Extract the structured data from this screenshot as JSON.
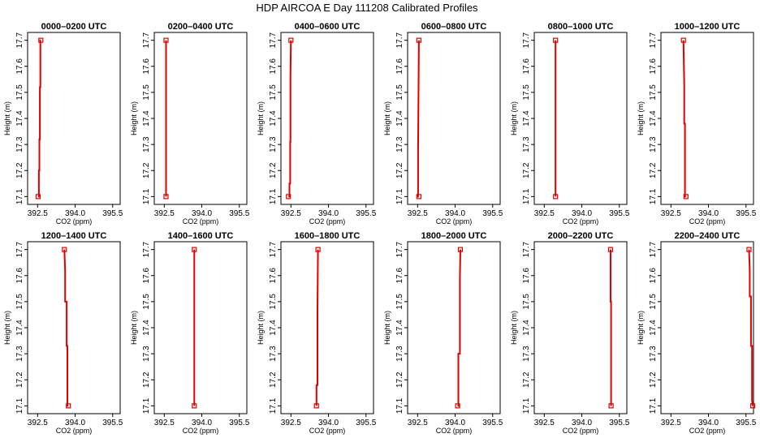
{
  "title": "HDP AIRCOA E  Day 111208  Calibrated Profiles",
  "chart_data": [
    {
      "type": "line",
      "title": "0000–0200 UTC",
      "xlabel": "CO2 (ppm)",
      "ylabel": "Height (m)",
      "xlim": [
        392.1,
        395.8
      ],
      "ylim": [
        17.07,
        17.73
      ],
      "xticks": [
        "392.5",
        "394.0",
        "395.5"
      ],
      "yticks": [
        "17.1",
        "17.2",
        "17.3",
        "17.4",
        "17.5",
        "17.6",
        "17.7"
      ],
      "color": "#e00000",
      "series": [
        {
          "x": [
            392.52,
            392.55,
            392.55,
            392.57,
            392.57,
            392.59,
            392.59,
            392.61,
            392.61,
            392.63
          ],
          "y": [
            17.1,
            17.1,
            17.2,
            17.2,
            17.32,
            17.32,
            17.52,
            17.52,
            17.7,
            17.7
          ]
        }
      ],
      "endpoints": [
        {
          "x": 392.52,
          "y": 17.1
        },
        {
          "x": 392.63,
          "y": 17.7
        }
      ]
    },
    {
      "type": "line",
      "title": "0200–0400 UTC",
      "xlabel": "CO2 (ppm)",
      "ylabel": "Height (m)",
      "xlim": [
        392.1,
        395.8
      ],
      "ylim": [
        17.07,
        17.73
      ],
      "xticks": [
        "392.5",
        "394.0",
        "395.5"
      ],
      "yticks": [
        "17.1",
        "17.2",
        "17.3",
        "17.4",
        "17.5",
        "17.6",
        "17.7"
      ],
      "color": "#e00000",
      "series": [
        {
          "x": [
            392.57,
            392.57
          ],
          "y": [
            17.1,
            17.7
          ]
        }
      ],
      "endpoints": [
        {
          "x": 392.57,
          "y": 17.1
        },
        {
          "x": 392.57,
          "y": 17.7
        }
      ]
    },
    {
      "type": "line",
      "title": "0400–0600 UTC",
      "xlabel": "CO2 (ppm)",
      "ylabel": "Height (m)",
      "xlim": [
        392.1,
        395.8
      ],
      "ylim": [
        17.07,
        17.73
      ],
      "xticks": [
        "392.5",
        "394.0",
        "395.5"
      ],
      "yticks": [
        "17.1",
        "17.2",
        "17.3",
        "17.4",
        "17.5",
        "17.6",
        "17.7"
      ],
      "color": "#e00000",
      "series": [
        {
          "x": [
            392.4,
            392.44,
            392.44,
            392.47,
            392.47,
            392.48,
            392.48,
            392.5
          ],
          "y": [
            17.1,
            17.1,
            17.15,
            17.15,
            17.31,
            17.31,
            17.56,
            17.7
          ]
        }
      ],
      "endpoints": [
        {
          "x": 392.4,
          "y": 17.1
        },
        {
          "x": 392.5,
          "y": 17.7
        }
      ]
    },
    {
      "type": "line",
      "title": "0600–0800 UTC",
      "xlabel": "CO2 (ppm)",
      "ylabel": "Height (m)",
      "xlim": [
        392.1,
        395.8
      ],
      "ylim": [
        17.07,
        17.73
      ],
      "xticks": [
        "392.5",
        "394.0",
        "395.5"
      ],
      "yticks": [
        "17.1",
        "17.2",
        "17.3",
        "17.4",
        "17.5",
        "17.6",
        "17.7"
      ],
      "color": "#e00000",
      "series": [
        {
          "x": [
            392.55,
            392.52,
            392.52,
            392.55
          ],
          "y": [
            17.1,
            17.1,
            17.27,
            17.7
          ]
        }
      ],
      "endpoints": [
        {
          "x": 392.55,
          "y": 17.1
        },
        {
          "x": 392.55,
          "y": 17.7
        }
      ]
    },
    {
      "type": "line",
      "title": "0800–1000 UTC",
      "xlabel": "CO2 (ppm)",
      "ylabel": "Height (m)",
      "xlim": [
        392.1,
        395.8
      ],
      "ylim": [
        17.07,
        17.73
      ],
      "xticks": [
        "392.5",
        "394.0",
        "395.5"
      ],
      "yticks": [
        "17.1",
        "17.2",
        "17.3",
        "17.4",
        "17.5",
        "17.6",
        "17.7"
      ],
      "color": "#e00000",
      "series": [
        {
          "x": [
            392.95,
            392.95
          ],
          "y": [
            17.1,
            17.7
          ]
        }
      ],
      "endpoints": [
        {
          "x": 392.95,
          "y": 17.1
        },
        {
          "x": 392.95,
          "y": 17.7
        }
      ]
    },
    {
      "type": "line",
      "title": "1000–1200 UTC",
      "xlabel": "CO2 (ppm)",
      "ylabel": "Height (m)",
      "xlim": [
        392.1,
        395.8
      ],
      "ylim": [
        17.07,
        17.73
      ],
      "xticks": [
        "392.5",
        "394.0",
        "395.5"
      ],
      "yticks": [
        "17.1",
        "17.2",
        "17.3",
        "17.4",
        "17.5",
        "17.6",
        "17.7"
      ],
      "color": "#e00000",
      "series": [
        {
          "x": [
            393.1,
            393.06,
            393.06,
            393.03,
            393.03,
            393.0
          ],
          "y": [
            17.1,
            17.1,
            17.38,
            17.38,
            17.53,
            17.7
          ]
        }
      ],
      "endpoints": [
        {
          "x": 393.1,
          "y": 17.1
        },
        {
          "x": 393.0,
          "y": 17.7
        }
      ]
    },
    {
      "type": "line",
      "title": "1200–1400 UTC",
      "xlabel": "CO2 (ppm)",
      "ylabel": "Height (m)",
      "xlim": [
        392.1,
        395.8
      ],
      "ylim": [
        17.07,
        17.73
      ],
      "xticks": [
        "392.5",
        "394.0",
        "395.5"
      ],
      "yticks": [
        "17.1",
        "17.2",
        "17.3",
        "17.4",
        "17.5",
        "17.6",
        "17.7"
      ],
      "color": "#e00000",
      "series": [
        {
          "x": [
            393.73,
            393.69,
            393.69,
            393.66,
            393.66,
            393.6,
            393.6,
            393.57
          ],
          "y": [
            17.1,
            17.1,
            17.33,
            17.33,
            17.5,
            17.5,
            17.62,
            17.7
          ]
        }
      ],
      "endpoints": [
        {
          "x": 393.73,
          "y": 17.1
        },
        {
          "x": 393.57,
          "y": 17.7
        }
      ]
    },
    {
      "type": "line",
      "title": "1400–1600 UTC",
      "xlabel": "CO2 (ppm)",
      "ylabel": "Height (m)",
      "xlim": [
        392.1,
        395.8
      ],
      "ylim": [
        17.07,
        17.73
      ],
      "xticks": [
        "392.5",
        "394.0",
        "395.5"
      ],
      "yticks": [
        "17.1",
        "17.2",
        "17.3",
        "17.4",
        "17.5",
        "17.6",
        "17.7"
      ],
      "color": "#e00000",
      "series": [
        {
          "x": [
            393.7,
            393.7
          ],
          "y": [
            17.1,
            17.7
          ]
        }
      ],
      "endpoints": [
        {
          "x": 393.7,
          "y": 17.1
        },
        {
          "x": 393.7,
          "y": 17.7
        }
      ]
    },
    {
      "type": "line",
      "title": "1600–1800 UTC",
      "xlabel": "CO2 (ppm)",
      "ylabel": "Height (m)",
      "xlim": [
        392.1,
        395.8
      ],
      "ylim": [
        17.07,
        17.73
      ],
      "xticks": [
        "392.5",
        "394.0",
        "395.5"
      ],
      "yticks": [
        "17.1",
        "17.2",
        "17.3",
        "17.4",
        "17.5",
        "17.6",
        "17.7"
      ],
      "color": "#e00000",
      "series": [
        {
          "x": [
            393.52,
            393.52,
            393.56,
            393.56,
            393.58
          ],
          "y": [
            17.1,
            17.18,
            17.18,
            17.47,
            17.7
          ]
        }
      ],
      "endpoints": [
        {
          "x": 393.52,
          "y": 17.1
        },
        {
          "x": 393.58,
          "y": 17.7
        }
      ]
    },
    {
      "type": "line",
      "title": "1800–2000 UTC",
      "xlabel": "CO2 (ppm)",
      "ylabel": "Height (m)",
      "xlim": [
        392.1,
        395.8
      ],
      "ylim": [
        17.07,
        17.73
      ],
      "xticks": [
        "392.5",
        "394.0",
        "395.5"
      ],
      "yticks": [
        "17.1",
        "17.2",
        "17.3",
        "17.4",
        "17.5",
        "17.6",
        "17.7"
      ],
      "color": "#e00000",
      "series": [
        {
          "x": [
            394.1,
            394.13,
            394.13,
            394.19,
            394.19,
            394.21
          ],
          "y": [
            17.1,
            17.1,
            17.3,
            17.3,
            17.59,
            17.7
          ]
        }
      ],
      "endpoints": [
        {
          "x": 394.1,
          "y": 17.1
        },
        {
          "x": 394.21,
          "y": 17.7
        }
      ]
    },
    {
      "type": "line",
      "title": "2000–2200 UTC",
      "xlabel": "CO2 (ppm)",
      "ylabel": "Height (m)",
      "xlim": [
        392.1,
        395.8
      ],
      "ylim": [
        17.07,
        17.73
      ],
      "xticks": [
        "392.5",
        "394.0",
        "395.5"
      ],
      "yticks": [
        "17.1",
        "17.2",
        "17.3",
        "17.4",
        "17.5",
        "17.6",
        "17.7"
      ],
      "color": "#e00000",
      "series": [
        {
          "x": [
            395.17,
            395.17,
            395.15,
            395.15
          ],
          "y": [
            17.1,
            17.5,
            17.5,
            17.7
          ]
        }
      ],
      "endpoints": [
        {
          "x": 395.17,
          "y": 17.1
        },
        {
          "x": 395.15,
          "y": 17.7
        }
      ]
    },
    {
      "type": "line",
      "title": "2200–2400 UTC",
      "xlabel": "CO2 (ppm)",
      "ylabel": "Height (m)",
      "xlim": [
        392.1,
        395.8
      ],
      "ylim": [
        17.07,
        17.73
      ],
      "xticks": [
        "392.5",
        "394.0",
        "395.5"
      ],
      "yticks": [
        "17.1",
        "17.2",
        "17.3",
        "17.4",
        "17.5",
        "17.6",
        "17.7"
      ],
      "color": "#e00000",
      "series": [
        {
          "x": [
            395.77,
            395.74,
            395.74,
            395.7,
            395.7,
            395.65,
            395.65,
            395.62
          ],
          "y": [
            17.1,
            17.12,
            17.33,
            17.33,
            17.52,
            17.52,
            17.62,
            17.7
          ]
        }
      ],
      "endpoints": [
        {
          "x": 395.77,
          "y": 17.1
        },
        {
          "x": 395.62,
          "y": 17.7
        }
      ]
    }
  ]
}
